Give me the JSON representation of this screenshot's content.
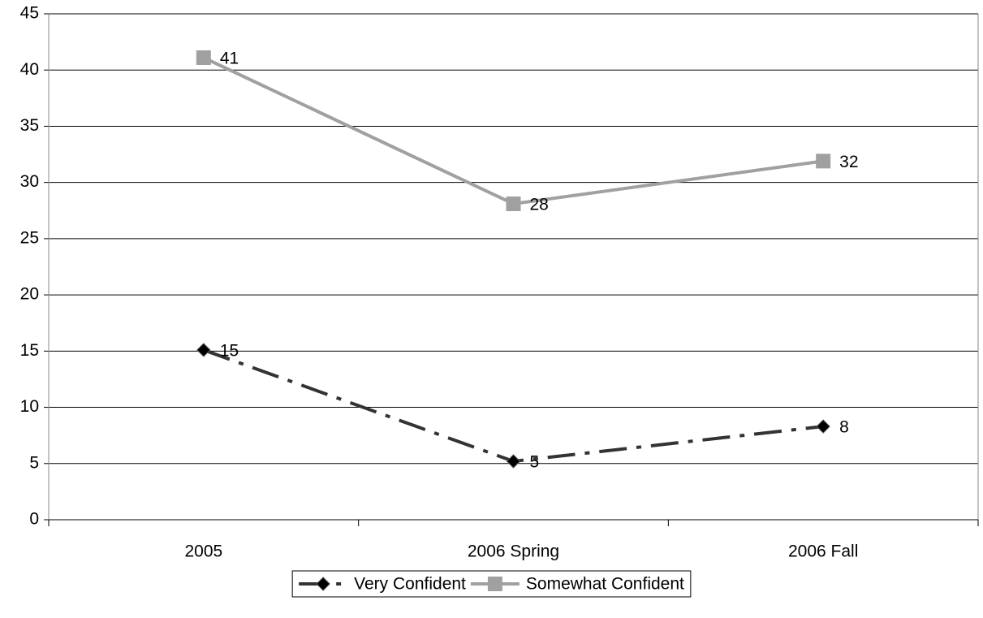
{
  "chart_data": {
    "type": "line",
    "categories": [
      "2005",
      "2006 Spring",
      "2006 Fall"
    ],
    "series": [
      {
        "name": "Very Confident",
        "color": "#333333",
        "marker": "diamond",
        "dashed": true,
        "values": [
          15.1,
          5.2,
          8.3
        ],
        "value_labels": [
          "15",
          "5",
          "8"
        ]
      },
      {
        "name": "Somewhat Confident",
        "color": "#a0a0a0",
        "marker": "square",
        "dashed": false,
        "values": [
          41.1,
          28.1,
          31.9
        ],
        "value_labels": [
          "41",
          "28",
          "32"
        ]
      }
    ],
    "ylim": [
      0,
      45
    ],
    "yticks": [
      0,
      5,
      10,
      15,
      20,
      25,
      30,
      35,
      40,
      45
    ],
    "grid": true,
    "legend": "bottom"
  }
}
